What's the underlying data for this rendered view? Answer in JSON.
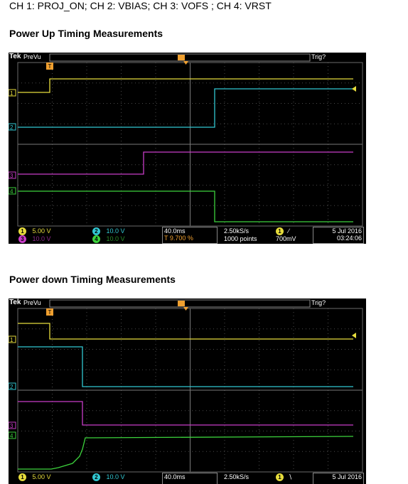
{
  "intro": "CH 1: PROJ_ON; CH 2: VBIAS; CH 3: VOFS ; CH 4: VRST",
  "colors": {
    "ch1": "#e6dc3c",
    "ch2": "#32c8d2",
    "ch3": "#c83cc8",
    "ch4": "#3cd23c",
    "trigger": "#f0a030"
  },
  "sections": [
    {
      "heading": "Power Up Timing Measurements",
      "scope": {
        "brand": "Tek",
        "mode": "PreVu",
        "trig_status": "Trig?",
        "ch1_scale": "5.00 V",
        "ch2_scale": "10.0 V",
        "ch3_scale": "10.0 V",
        "ch4_scale": "10.0 V",
        "ch1_n": "1",
        "ch2_n": "2",
        "ch3_n": "3",
        "ch4_n": "4",
        "timebase": "40.0ms",
        "trig_pos": "9.700 %",
        "sample_rate": "2.50kS/s",
        "points": "1000 points",
        "trig_ch": "1",
        "trig_level": "700mV",
        "date": "5 Jul  2016",
        "time": "03:24:06"
      }
    },
    {
      "heading": "Power down Timing Measurements",
      "scope": {
        "brand": "Tek",
        "mode": "PreVu",
        "trig_status": "Trig?",
        "ch1_scale": "5.00 V",
        "ch2_scale": "10.0 V",
        "ch1_n": "1",
        "ch2_n": "2",
        "timebase": "40.0ms",
        "sample_rate": "2.50kS/s",
        "trig_ch": "1",
        "date": "5 Jul  2016"
      }
    }
  ]
}
